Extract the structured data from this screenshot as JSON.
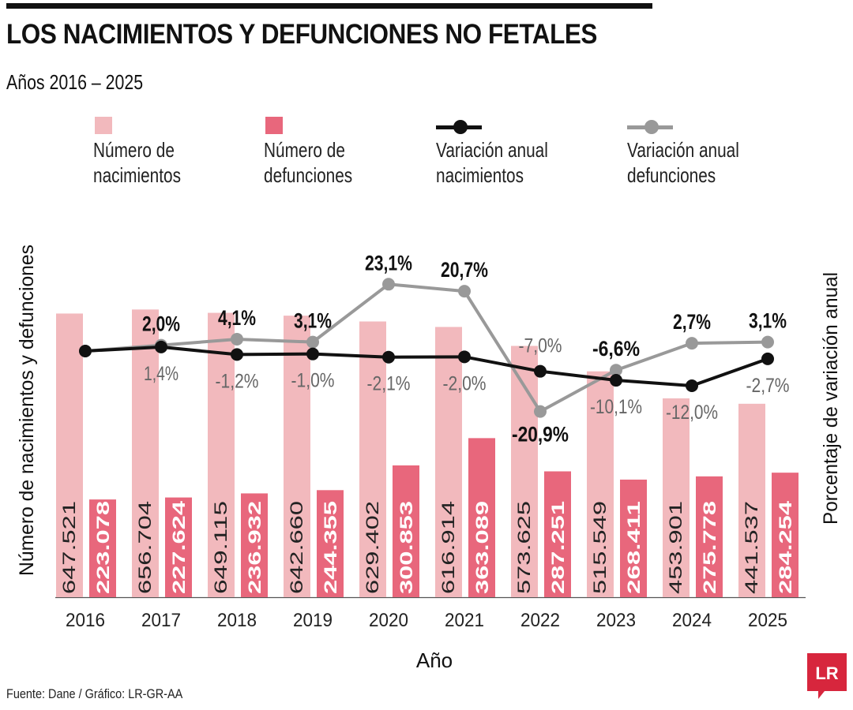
{
  "title": "LOS NACIMIENTOS Y DEFUNCIONES NO FETALES",
  "subtitle": "Años 2016 – 2025",
  "legend": [
    {
      "label_line1": "Número de",
      "label_line2": "nacimientos",
      "color": "#f2b9bd",
      "kind": "bar"
    },
    {
      "label_line1": "Número de",
      "label_line2": "defunciones",
      "color": "#e8677c",
      "kind": "bar"
    },
    {
      "label_line1": "Variación anual",
      "label_line2": "nacimientos",
      "color": "#111111",
      "kind": "line"
    },
    {
      "label_line1": "Variación anual",
      "label_line2": "defunciones",
      "color": "#999999",
      "kind": "line"
    }
  ],
  "source": "Fuente: Dane / Gráfico: LR-GR-AA",
  "logo_text": "LR",
  "colors": {
    "births": "#f2b9bd",
    "deaths": "#e8677c",
    "births_var": "#111111",
    "deaths_var": "#999999",
    "logo": "#d7263d"
  },
  "chart_data": {
    "type": "bar",
    "title": "LOS NACIMIENTOS Y DEFUNCIONES NO FETALES",
    "subtitle": "Años 2016 – 2025",
    "xlabel": "Año",
    "ylabel": "Número de nacimientos y defunciones",
    "y2label": "Porcentaje de variación anual",
    "categories": [
      "2016",
      "2017",
      "2018",
      "2019",
      "2020",
      "2021",
      "2022",
      "2023",
      "2024",
      "2025"
    ],
    "series": [
      {
        "name": "Número de nacimientos",
        "type": "bar",
        "values": [
          647521,
          656704,
          649115,
          642660,
          629402,
          616914,
          573625,
          515549,
          453901,
          441537
        ],
        "labels": [
          "647.521",
          "656.704",
          "649.115",
          "642.660",
          "629.402",
          "616.914",
          "573.625",
          "515.549",
          "453.901",
          "441.537"
        ]
      },
      {
        "name": "Número de defunciones",
        "type": "bar",
        "values": [
          223078,
          227624,
          236932,
          244355,
          300853,
          363089,
          287251,
          268411,
          275778,
          284254
        ],
        "labels": [
          "223.078",
          "227.624",
          "236.932",
          "244.355",
          "300.853",
          "363.089",
          "287.251",
          "268.411",
          "275.778",
          "284.254"
        ]
      },
      {
        "name": "Variación anual nacimientos",
        "type": "line",
        "values": [
          null,
          1.4,
          -1.2,
          -1.0,
          -2.1,
          -2.0,
          -7.0,
          -10.1,
          -12.0,
          -2.7
        ],
        "labels": [
          "",
          "1,4%",
          "-1,2%",
          "-1,0%",
          "-2,1%",
          "-2,0%",
          "-7,0%",
          "-10,1%",
          "-12,0%",
          "-2,7%"
        ]
      },
      {
        "name": "Variación anual defunciones",
        "type": "line",
        "values": [
          null,
          2.0,
          4.1,
          3.1,
          23.1,
          20.7,
          -20.9,
          -6.6,
          2.7,
          3.1
        ],
        "labels": [
          "",
          "2,0%",
          "4,1%",
          "3,1%",
          "23,1%",
          "20,7%",
          "-20,9%",
          "-6,6%",
          "2,7%",
          "3,1%"
        ]
      }
    ],
    "grid": false,
    "legend_position": "top"
  }
}
